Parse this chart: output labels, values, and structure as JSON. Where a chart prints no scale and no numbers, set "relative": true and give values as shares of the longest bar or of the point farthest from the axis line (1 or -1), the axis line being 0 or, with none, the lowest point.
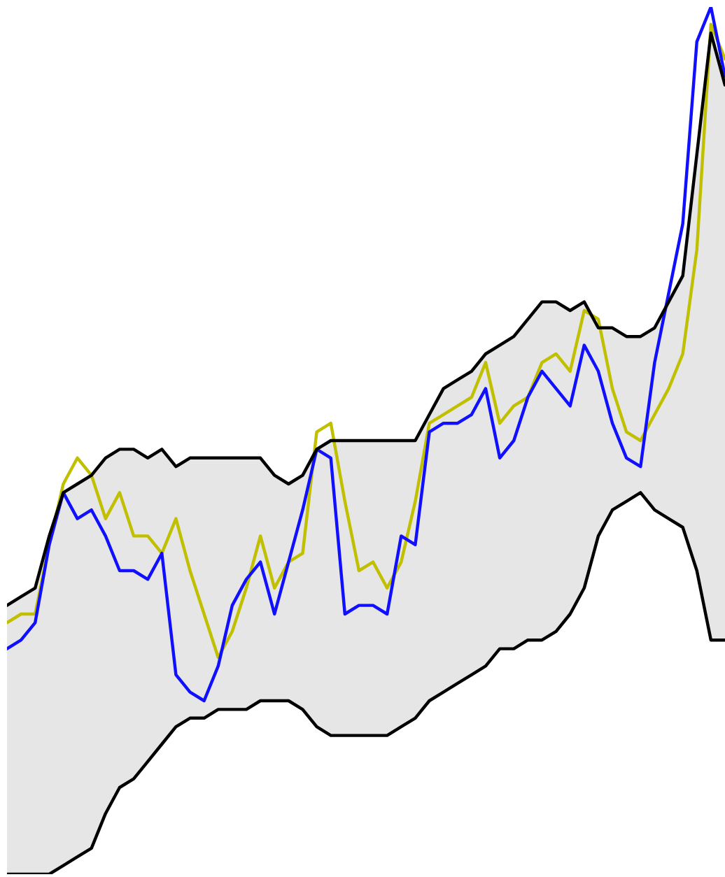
{
  "chart_data": {
    "type": "line",
    "relative": true,
    "categories": [
      null,
      null,
      null,
      null,
      null,
      null,
      null,
      null,
      null,
      null,
      null,
      null,
      null,
      null,
      null,
      null,
      null,
      null,
      null,
      null,
      null,
      null,
      null,
      null,
      null,
      null,
      null,
      null,
      null,
      null,
      null,
      null,
      null,
      null,
      null,
      null,
      null,
      null,
      null,
      null,
      null,
      null,
      null,
      null,
      null,
      null,
      null,
      null,
      null,
      null,
      null,
      null
    ],
    "series": [
      {
        "color": "#000000",
        "values": [
          0.31,
          0.32,
          0.33,
          0.39,
          0.44,
          0.45,
          0.46,
          0.48,
          0.49,
          0.49,
          0.48,
          0.49,
          0.47,
          0.48,
          0.48,
          0.48,
          0.48,
          0.48,
          0.48,
          0.46,
          0.45,
          0.46,
          0.49,
          0.5,
          0.5,
          0.5,
          0.5,
          0.5,
          0.5,
          0.5,
          0.53,
          0.56,
          0.57,
          0.58,
          0.6,
          0.61,
          0.62,
          0.64,
          0.66,
          0.66,
          0.65,
          0.66,
          0.63,
          0.63,
          0.62,
          0.62,
          0.63,
          0.66,
          0.69,
          0.83,
          0.97,
          0.91
        ],
        "lower": [
          0.0,
          0.0,
          0.0,
          0.0,
          0.01,
          0.02,
          0.03,
          0.07,
          0.1,
          0.11,
          0.13,
          0.15,
          0.17,
          0.18,
          0.18,
          0.19,
          0.19,
          0.19,
          0.2,
          0.2,
          0.2,
          0.19,
          0.17,
          0.16,
          0.16,
          0.16,
          0.16,
          0.16,
          0.17,
          0.18,
          0.2,
          0.21,
          0.22,
          0.23,
          0.24,
          0.26,
          0.26,
          0.27,
          0.27,
          0.28,
          0.3,
          0.33,
          0.39,
          0.42,
          0.43,
          0.44,
          0.42,
          0.41,
          0.4,
          0.35,
          0.27,
          0.27
        ],
        "upper": [
          0.31,
          0.32,
          0.33,
          0.39,
          0.44,
          0.45,
          0.46,
          0.48,
          0.49,
          0.49,
          0.48,
          0.49,
          0.47,
          0.48,
          0.48,
          0.48,
          0.48,
          0.48,
          0.48,
          0.46,
          0.45,
          0.46,
          0.49,
          0.5,
          0.5,
          0.5,
          0.5,
          0.5,
          0.5,
          0.5,
          0.53,
          0.56,
          0.57,
          0.58,
          0.6,
          0.61,
          0.62,
          0.64,
          0.66,
          0.66,
          0.65,
          0.66,
          0.63,
          0.63,
          0.62,
          0.62,
          0.63,
          0.66,
          0.69,
          0.83,
          0.97,
          0.91
        ]
      },
      {
        "color": "#000000",
        "values": [
          0.0,
          0.0,
          0.0,
          0.0,
          0.01,
          0.02,
          0.03,
          0.07,
          0.1,
          0.11,
          0.13,
          0.15,
          0.17,
          0.18,
          0.18,
          0.19,
          0.19,
          0.19,
          0.2,
          0.2,
          0.2,
          0.19,
          0.17,
          0.16,
          0.16,
          0.16,
          0.16,
          0.16,
          0.17,
          0.18,
          0.2,
          0.21,
          0.22,
          0.23,
          0.24,
          0.26,
          0.26,
          0.27,
          0.27,
          0.28,
          0.3,
          0.33,
          0.39,
          0.42,
          0.43,
          0.44,
          0.42,
          0.41,
          0.4,
          0.35,
          0.27,
          0.27
        ]
      },
      {
        "color": "#c0c000",
        "values": [
          0.29,
          0.3,
          0.3,
          0.38,
          0.45,
          0.48,
          0.46,
          0.41,
          0.44,
          0.39,
          0.39,
          0.37,
          0.41,
          0.35,
          0.3,
          0.25,
          0.28,
          0.33,
          0.39,
          0.33,
          0.36,
          0.37,
          0.51,
          0.52,
          0.43,
          0.35,
          0.36,
          0.33,
          0.36,
          0.43,
          0.52,
          0.53,
          0.54,
          0.55,
          0.59,
          0.52,
          0.54,
          0.55,
          0.59,
          0.6,
          0.58,
          0.65,
          0.64,
          0.56,
          0.51,
          0.5,
          0.53,
          0.56,
          0.6,
          0.72,
          0.98,
          0.94
        ]
      },
      {
        "color": "#1010ff",
        "values": [
          0.26,
          0.27,
          0.29,
          0.38,
          0.44,
          0.41,
          0.42,
          0.39,
          0.35,
          0.35,
          0.34,
          0.37,
          0.23,
          0.21,
          0.2,
          0.24,
          0.31,
          0.34,
          0.36,
          0.3,
          0.36,
          0.42,
          0.49,
          0.48,
          0.3,
          0.31,
          0.31,
          0.3,
          0.39,
          0.38,
          0.51,
          0.52,
          0.52,
          0.53,
          0.56,
          0.48,
          0.5,
          0.55,
          0.58,
          0.56,
          0.54,
          0.61,
          0.58,
          0.52,
          0.48,
          0.47,
          0.59,
          0.67,
          0.75,
          0.96,
          1.0,
          0.92
        ]
      }
    ]
  }
}
